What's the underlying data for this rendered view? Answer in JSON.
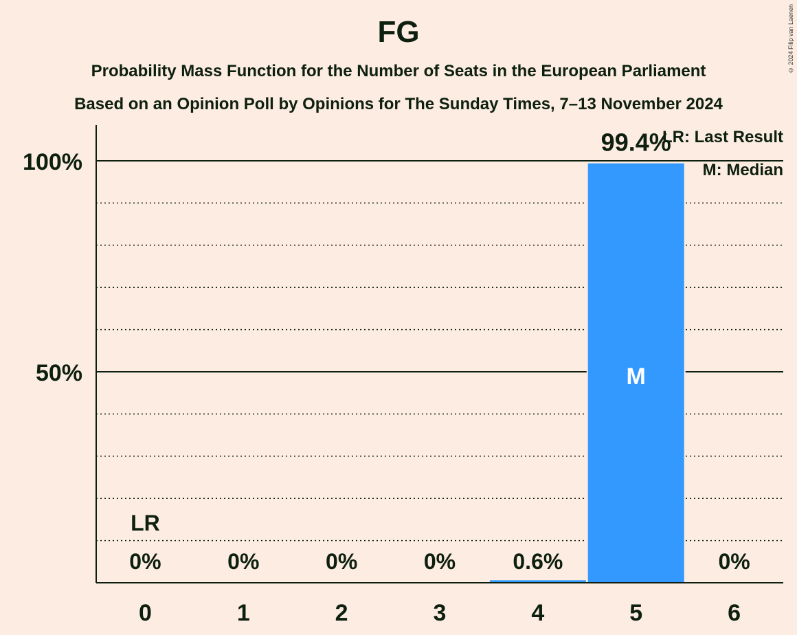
{
  "title": "FG",
  "subtitle_line1": "Probability Mass Function for the Number of Seats in the European Parliament",
  "subtitle_line2": "Based on an Opinion Poll by Opinions for The Sunday Times, 7–13 November 2024",
  "copyright": "© 2024 Filip van Laenen",
  "legend": {
    "lr": "LR: Last Result",
    "m": "M: Median"
  },
  "colors": {
    "background": "#fdece1",
    "bar": "#3399ff",
    "text": "#0d1f0f"
  },
  "chart_data": {
    "type": "bar",
    "categories": [
      "0",
      "1",
      "2",
      "3",
      "4",
      "5",
      "6"
    ],
    "values": [
      0,
      0,
      0,
      0,
      0.6,
      99.4,
      0
    ],
    "value_labels": [
      "0%",
      "0%",
      "0%",
      "0%",
      "0.6%",
      "99.4%",
      "0%"
    ],
    "y_ticks": [
      {
        "value": 50,
        "label": "50%"
      },
      {
        "value": 100,
        "label": "100%"
      }
    ],
    "ylim": [
      0,
      110
    ],
    "grid": "dotted every 10%",
    "last_result_category": "0",
    "last_result_label": "LR",
    "median_category": "5",
    "median_label": "M"
  }
}
